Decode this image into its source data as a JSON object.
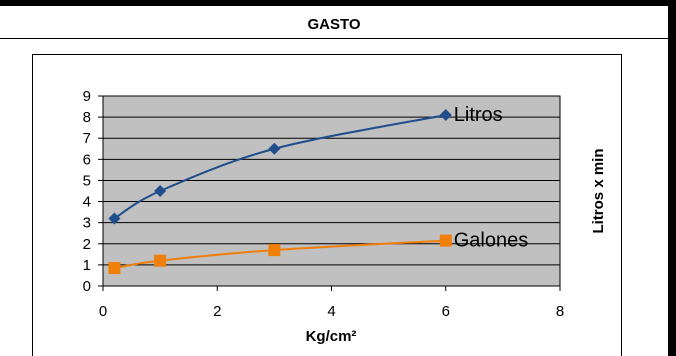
{
  "header": {
    "title": "GASTO"
  },
  "chart_data": {
    "type": "line",
    "title": "",
    "xlabel": "Kg/cm²",
    "ylabel": "Litros x min",
    "xlim": [
      0,
      8
    ],
    "ylim": [
      0,
      9
    ],
    "xticks": [
      "0",
      "2",
      "4",
      "6",
      "8"
    ],
    "yticks": [
      "0",
      "1",
      "2",
      "3",
      "4",
      "5",
      "6",
      "7",
      "8",
      "9"
    ],
    "grid": true,
    "plot_background": "#c0c0c0",
    "series": [
      {
        "name": "Litros",
        "color": "#1f4e8c",
        "marker": "diamond",
        "x": [
          0.2,
          1,
          3,
          6
        ],
        "y": [
          3.2,
          4.5,
          6.5,
          8.1
        ]
      },
      {
        "name": "Galones",
        "color": "#f07f0a",
        "marker": "square",
        "x": [
          0.2,
          1,
          3,
          6
        ],
        "y": [
          0.85,
          1.2,
          1.7,
          2.15
        ]
      }
    ]
  }
}
